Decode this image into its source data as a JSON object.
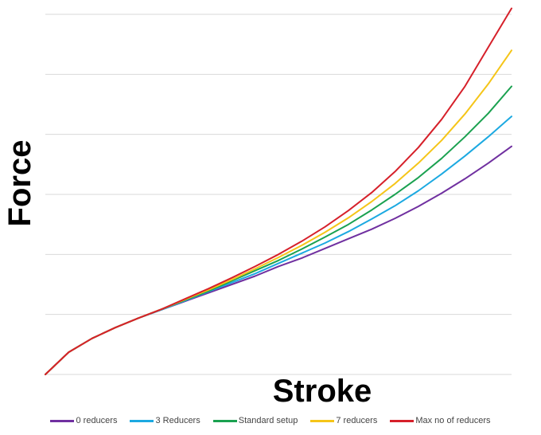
{
  "chart_data": {
    "type": "line",
    "title": "",
    "xlabel": "Stroke",
    "ylabel": "Force",
    "x": [
      0,
      0.05,
      0.1,
      0.15,
      0.2,
      0.25,
      0.3,
      0.35,
      0.4,
      0.45,
      0.5,
      0.55,
      0.6,
      0.65,
      0.7,
      0.75,
      0.8,
      0.85,
      0.9,
      0.95,
      1.0
    ],
    "xlim": [
      0,
      1
    ],
    "ylim": [
      0,
      6
    ],
    "grid": "horizontal",
    "legend_position": "bottom",
    "series": [
      {
        "name": "0 reducers",
        "color": "#7030A0",
        "values": [
          0,
          0.37,
          0.6,
          0.78,
          0.94,
          1.08,
          1.22,
          1.36,
          1.5,
          1.64,
          1.8,
          1.94,
          2.1,
          2.26,
          2.42,
          2.6,
          2.8,
          3.02,
          3.26,
          3.52,
          3.8
        ]
      },
      {
        "name": "3 Reducers",
        "color": "#1CA9E1",
        "values": [
          0,
          0.37,
          0.6,
          0.78,
          0.94,
          1.08,
          1.23,
          1.38,
          1.53,
          1.68,
          1.85,
          2.02,
          2.19,
          2.38,
          2.59,
          2.81,
          3.06,
          3.34,
          3.64,
          3.96,
          4.3
        ]
      },
      {
        "name": "Standard setup",
        "color": "#1AA150",
        "values": [
          0,
          0.37,
          0.6,
          0.78,
          0.94,
          1.09,
          1.24,
          1.39,
          1.56,
          1.73,
          1.9,
          2.09,
          2.29,
          2.5,
          2.74,
          3.0,
          3.28,
          3.6,
          3.96,
          4.35,
          4.8
        ]
      },
      {
        "name": "7 reducers",
        "color": "#F5C518",
        "values": [
          0,
          0.37,
          0.6,
          0.78,
          0.94,
          1.09,
          1.25,
          1.41,
          1.58,
          1.76,
          1.95,
          2.15,
          2.37,
          2.61,
          2.88,
          3.18,
          3.52,
          3.9,
          4.34,
          4.84,
          5.4
        ]
      },
      {
        "name": "Max no of reducers",
        "color": "#D6202A",
        "values": [
          0,
          0.37,
          0.6,
          0.78,
          0.94,
          1.09,
          1.26,
          1.43,
          1.61,
          1.8,
          2.0,
          2.22,
          2.46,
          2.73,
          3.03,
          3.38,
          3.78,
          4.25,
          4.8,
          5.45,
          6.1
        ]
      }
    ]
  }
}
